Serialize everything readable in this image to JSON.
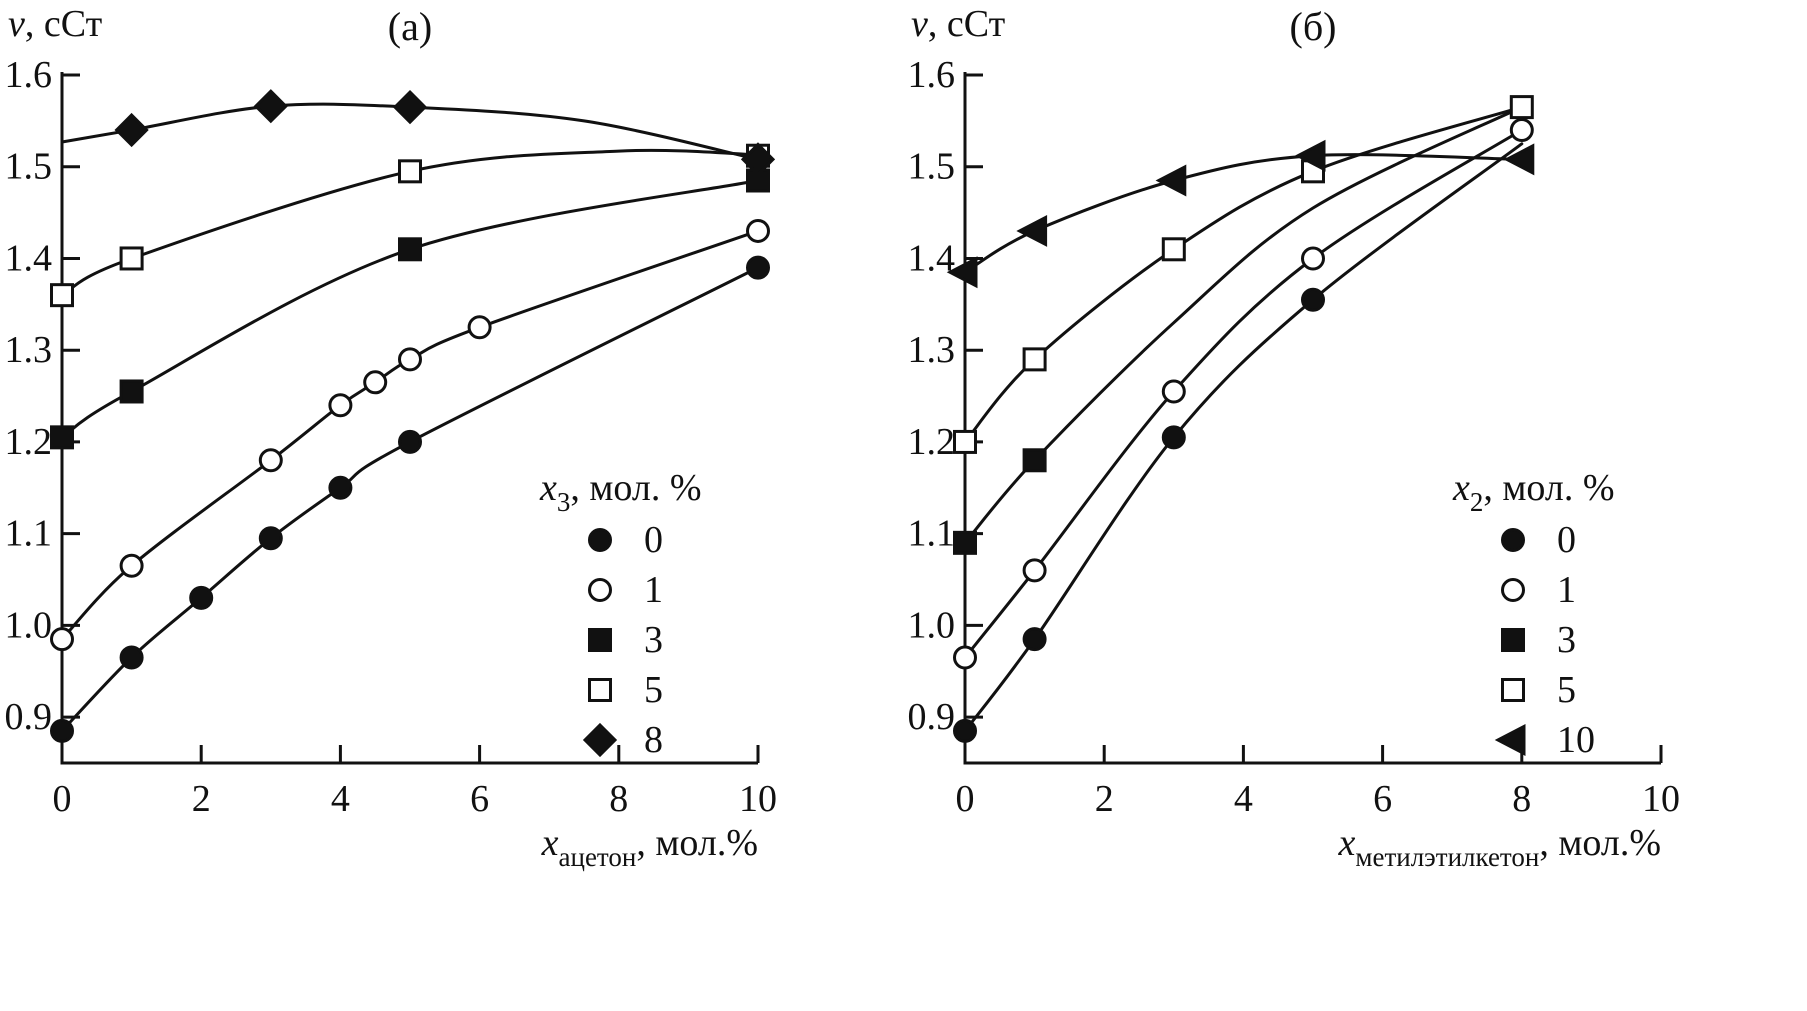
{
  "figure": {
    "background": "#ffffff",
    "ink": "#111111"
  },
  "chart_data": [
    {
      "type": "line",
      "panel_label": "(а)",
      "y_axis_title": {
        "base": "ν",
        "sub": "",
        "rest": ", сСт"
      },
      "x_axis_label": {
        "base": "x",
        "sub": "ацетон",
        "rest": ", мол.%"
      },
      "xlim": [
        0,
        10
      ],
      "ylim": [
        0.85,
        1.6
      ],
      "xticks": {
        "values": [
          0,
          2,
          4,
          6,
          8,
          10
        ],
        "labels": [
          "0",
          "2",
          "4",
          "6",
          "8",
          "10"
        ]
      },
      "yticks": {
        "values": [
          0.9,
          1.0,
          1.1,
          1.2,
          1.3,
          1.4,
          1.5,
          1.6
        ],
        "labels": [
          "0.9",
          "1.0",
          "1.1",
          "1.2",
          "1.3",
          "1.4",
          "1.5",
          "1.6"
        ]
      },
      "legend": {
        "title": {
          "base": "x",
          "sub": "3",
          "rest": ", мол. %"
        },
        "pos": {
          "x": 600,
          "y": 540
        },
        "items": [
          {
            "label": "0",
            "marker": "circle-filled"
          },
          {
            "label": "1",
            "marker": "circle-open"
          },
          {
            "label": "3",
            "marker": "square-filled"
          },
          {
            "label": "5",
            "marker": "square-open"
          },
          {
            "label": "8",
            "marker": "diamond-filled"
          }
        ]
      },
      "series": [
        {
          "name": "0",
          "marker": "circle-filled",
          "points": [
            [
              0,
              0.885
            ],
            [
              1,
              0.965
            ],
            [
              2,
              1.03
            ],
            [
              3,
              1.095
            ],
            [
              4,
              1.15
            ],
            [
              5,
              1.2
            ],
            [
              10,
              1.39
            ]
          ]
        },
        {
          "name": "1",
          "marker": "circle-open",
          "points": [
            [
              0,
              0.985
            ],
            [
              1,
              1.065
            ],
            [
              3,
              1.18
            ],
            [
              4,
              1.24
            ],
            [
              4.5,
              1.265
            ],
            [
              5,
              1.29
            ],
            [
              6,
              1.325
            ],
            [
              10,
              1.43
            ]
          ]
        },
        {
          "name": "3",
          "marker": "square-filled",
          "points": [
            [
              0,
              1.205
            ],
            [
              1,
              1.255
            ],
            [
              5,
              1.41
            ],
            [
              10,
              1.485
            ]
          ]
        },
        {
          "name": "5",
          "marker": "square-open",
          "points": [
            [
              0,
              1.36
            ],
            [
              1,
              1.4
            ],
            [
              5,
              1.495
            ],
            [
              10,
              1.512
            ]
          ],
          "curve": [
            [
              0,
              1.36
            ],
            [
              1,
              1.4
            ],
            [
              5,
              1.495
            ],
            [
              8,
              1.517
            ],
            [
              10,
              1.513
            ]
          ]
        },
        {
          "name": "8",
          "marker": "diamond-filled",
          "points": [
            [
              1,
              1.54
            ],
            [
              3,
              1.566
            ],
            [
              5,
              1.565
            ],
            [
              10,
              1.508
            ]
          ],
          "curve": [
            [
              0,
              1.527
            ],
            [
              1,
              1.54
            ],
            [
              3,
              1.566
            ],
            [
              5,
              1.565
            ],
            [
              7.5,
              1.55
            ],
            [
              10,
              1.508
            ]
          ]
        }
      ]
    },
    {
      "type": "line",
      "panel_label": "(б)",
      "y_axis_title": {
        "base": "ν",
        "sub": "",
        "rest": ", сСт"
      },
      "x_axis_label": {
        "base": "x",
        "sub": "метилэтилкетон",
        "rest": ", мол.%"
      },
      "xlim": [
        0,
        10
      ],
      "ylim": [
        0.85,
        1.6
      ],
      "xticks": {
        "values": [
          0,
          2,
          4,
          6,
          8,
          10
        ],
        "labels": [
          "0",
          "2",
          "4",
          "6",
          "8",
          "10"
        ]
      },
      "yticks": {
        "values": [
          0.9,
          1.0,
          1.1,
          1.2,
          1.3,
          1.4,
          1.5,
          1.6
        ],
        "labels": [
          "0.9",
          "1.0",
          "1.1",
          "1.2",
          "1.3",
          "1.4",
          "1.5",
          "1.6"
        ]
      },
      "legend": {
        "title": {
          "base": "x",
          "sub": "2",
          "rest": ", мол. %"
        },
        "pos": {
          "x": 610,
          "y": 540
        },
        "items": [
          {
            "label": "0",
            "marker": "circle-filled"
          },
          {
            "label": "1",
            "marker": "circle-open"
          },
          {
            "label": "3",
            "marker": "square-filled"
          },
          {
            "label": "5",
            "marker": "square-open"
          },
          {
            "label": "10",
            "marker": "triangle-left-filled"
          }
        ]
      },
      "series": [
        {
          "name": "0",
          "marker": "circle-filled",
          "points": [
            [
              0,
              0.885
            ],
            [
              1,
              0.985
            ],
            [
              3,
              1.205
            ],
            [
              5,
              1.355
            ]
          ],
          "curve": [
            [
              0,
              0.885
            ],
            [
              1,
              0.985
            ],
            [
              3,
              1.205
            ],
            [
              5,
              1.355
            ],
            [
              8,
              1.525
            ]
          ]
        },
        {
          "name": "1",
          "marker": "circle-open",
          "points": [
            [
              0,
              0.965
            ],
            [
              1,
              1.06
            ],
            [
              3,
              1.255
            ],
            [
              5,
              1.4
            ],
            [
              8,
              1.54
            ]
          ]
        },
        {
          "name": "3",
          "marker": "square-filled",
          "points": [
            [
              0,
              1.09
            ],
            [
              1,
              1.18
            ]
          ],
          "curve": [
            [
              0,
              1.09
            ],
            [
              1,
              1.18
            ],
            [
              3,
              1.33
            ],
            [
              5,
              1.455
            ],
            [
              8,
              1.565
            ]
          ]
        },
        {
          "name": "5",
          "marker": "square-open",
          "points": [
            [
              0,
              1.2
            ],
            [
              1,
              1.29
            ],
            [
              3,
              1.41
            ],
            [
              5,
              1.495
            ],
            [
              8,
              1.565
            ]
          ]
        },
        {
          "name": "10",
          "marker": "triangle-left-filled",
          "points": [
            [
              0,
              1.385
            ],
            [
              1,
              1.43
            ],
            [
              3,
              1.485
            ],
            [
              5,
              1.512
            ],
            [
              8,
              1.508
            ]
          ]
        }
      ]
    }
  ]
}
